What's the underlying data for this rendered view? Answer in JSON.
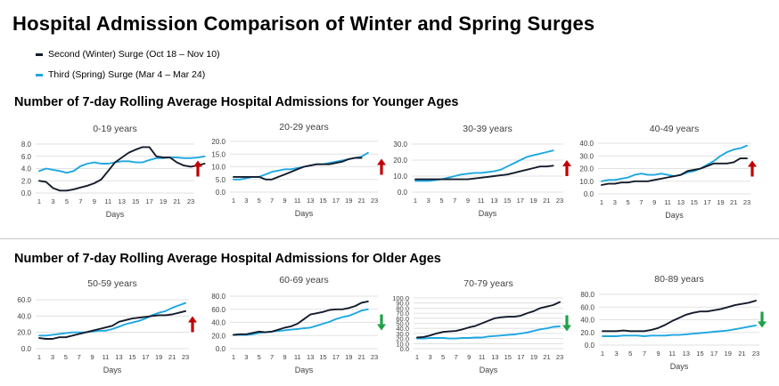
{
  "title": "Hospital Admission Comparison of Winter and Spring Surges",
  "legend": [
    {
      "label": "Second (Winter) Surge (Oct 18 – Nov 10)",
      "color": "#141c2b"
    },
    {
      "label": "Third (Spring) Surge (Mar 4 – Mar 24)",
      "color": "#1ea7e1"
    }
  ],
  "sections": [
    {
      "title": "Number of 7-day Rolling Average Hospital Admissions for Younger Ages"
    },
    {
      "title": "Number of 7-day Rolling Average Hospital Admissions for Older Ages"
    }
  ],
  "colors": {
    "winter": "#141c2b",
    "spring": "#1ea7e1",
    "arrow_up": "#c00000",
    "arrow_down": "#21a04a",
    "grid": "#d9d9d9"
  },
  "chart_data": [
    {
      "type": "line",
      "title": "0-19 years",
      "xlabel": "Days",
      "ylim": [
        0,
        8
      ],
      "yticks": [
        0,
        2,
        4,
        6,
        8
      ],
      "ytick_labels": [
        "0.0",
        "2.0",
        "4.0",
        "6.0",
        "8.0"
      ],
      "xtick_labels": [
        "1",
        "3",
        "5",
        "7",
        "9",
        "11",
        "13",
        "15",
        "17",
        "19",
        "21",
        "23"
      ],
      "trend": "up",
      "series": [
        {
          "name": "Second (Winter) Surge (Oct 18 – Nov 10)",
          "values": [
            2.0,
            1.8,
            0.8,
            0.4,
            0.4,
            0.6,
            0.9,
            1.2,
            1.6,
            2.2,
            3.6,
            5.0,
            5.8,
            6.6,
            7.1,
            7.5,
            7.5,
            6.0,
            5.8,
            5.8,
            5.0,
            4.5,
            4.3,
            4.5,
            4.8
          ]
        },
        {
          "name": "Third (Spring) Surge (Mar 4 – Mar 24)",
          "values": [
            3.6,
            4.0,
            3.8,
            3.6,
            3.3,
            3.6,
            4.4,
            4.8,
            5.0,
            4.8,
            4.8,
            5.0,
            5.2,
            5.2,
            5.0,
            5.0,
            5.4,
            5.7,
            5.7,
            5.8,
            5.8,
            5.7,
            5.7,
            5.8,
            6.0
          ]
        }
      ]
    },
    {
      "type": "line",
      "title": "20-29 years",
      "xlabel": "Days",
      "ylim": [
        0,
        20
      ],
      "yticks": [
        0,
        5,
        10,
        15,
        20
      ],
      "ytick_labels": [
        "0.0",
        "5.0",
        "10.0",
        "15.0",
        "20.0"
      ],
      "xtick_labels": [
        "1",
        "3",
        "5",
        "7",
        "9",
        "11",
        "13",
        "15",
        "17",
        "19",
        "21",
        "23"
      ],
      "trend": "up",
      "series": [
        {
          "name": "Second (Winter) Surge (Oct 18 – Nov 10)",
          "values": [
            6,
            6,
            6,
            6,
            6,
            5,
            5,
            6,
            7,
            8,
            9,
            10,
            10.5,
            11,
            11,
            11,
            11.5,
            12,
            13,
            13.5,
            13.5
          ]
        },
        {
          "name": "Third (Spring) Surge (Mar 4 – Mar 24)",
          "values": [
            5,
            5,
            5.5,
            6,
            6,
            7,
            8,
            8.5,
            9,
            9,
            9.5,
            10,
            10.5,
            11,
            11,
            11.5,
            12,
            12.5,
            13,
            13.5,
            14,
            15.5
          ]
        }
      ]
    },
    {
      "type": "line",
      "title": "30-39 years",
      "xlabel": "Days",
      "ylim": [
        0,
        30
      ],
      "yticks": [
        0,
        10,
        20,
        30
      ],
      "ytick_labels": [
        "0.0",
        "10.0",
        "20.0",
        "30.0"
      ],
      "xtick_labels": [
        "1",
        "3",
        "5",
        "7",
        "9",
        "11",
        "13",
        "15",
        "17",
        "19",
        "21",
        "23"
      ],
      "trend": "up",
      "series": [
        {
          "name": "Second (Winter) Surge (Oct 18 – Nov 10)",
          "values": [
            8,
            8,
            8,
            8,
            8,
            8,
            8,
            8,
            8,
            8.5,
            9,
            9.5,
            10,
            10.5,
            11,
            12,
            13,
            14,
            15,
            16,
            16,
            16.5
          ]
        },
        {
          "name": "Third (Spring) Surge (Mar 4 – Mar 24)",
          "values": [
            7,
            7,
            7,
            7.5,
            8,
            9,
            10,
            11,
            11.5,
            12,
            12,
            12.5,
            13,
            14,
            16,
            18,
            20,
            22,
            23,
            24,
            25,
            26
          ]
        }
      ]
    },
    {
      "type": "line",
      "title": "40-49 years",
      "xlabel": "Days",
      "ylim": [
        0,
        40
      ],
      "yticks": [
        0,
        10,
        20,
        30,
        40
      ],
      "ytick_labels": [
        "0.0",
        "10.0",
        "20.0",
        "30.0",
        "40.0"
      ],
      "xtick_labels": [
        "1",
        "3",
        "5",
        "7",
        "9",
        "11",
        "13",
        "15",
        "17",
        "19",
        "21",
        "23"
      ],
      "trend": "up",
      "series": [
        {
          "name": "Second (Winter) Surge (Oct 18 – Nov 10)",
          "values": [
            7,
            8,
            8,
            9,
            9,
            10,
            10,
            10,
            11,
            12,
            13,
            14,
            15,
            18,
            19,
            20,
            22,
            24,
            24,
            24,
            25,
            28,
            28
          ]
        },
        {
          "name": "Third (Spring) Surge (Mar 4 – Mar 24)",
          "values": [
            10,
            11,
            11,
            12,
            13,
            15,
            16,
            15,
            15,
            16,
            15,
            14,
            15,
            17,
            18,
            20,
            23,
            26,
            30,
            33,
            35,
            36,
            38
          ]
        }
      ]
    },
    {
      "type": "line",
      "title": "50-59 years",
      "xlabel": "Days",
      "ylim": [
        0,
        60
      ],
      "yticks": [
        0,
        20,
        40,
        60
      ],
      "ytick_labels": [
        "0.0",
        "20.0",
        "40.0",
        "60.0"
      ],
      "xtick_labels": [
        "1",
        "3",
        "5",
        "7",
        "9",
        "11",
        "13",
        "15",
        "17",
        "19",
        "21",
        "23"
      ],
      "trend": "up",
      "series": [
        {
          "name": "Second (Winter) Surge (Oct 18 – Nov 10)",
          "values": [
            13,
            12,
            12,
            14,
            14,
            16,
            18,
            20,
            22,
            24,
            26,
            28,
            33,
            35,
            37,
            38,
            39,
            40,
            41,
            41,
            42,
            44,
            46
          ]
        },
        {
          "name": "Third (Spring) Surge (Mar 4 – Mar 24)",
          "values": [
            16,
            16,
            17,
            18,
            19,
            20,
            20,
            20,
            21,
            22,
            22,
            24,
            27,
            30,
            32,
            34,
            37,
            41,
            44,
            46,
            50,
            53,
            56
          ]
        }
      ]
    },
    {
      "type": "line",
      "title": "60-69 years",
      "xlabel": "Days",
      "ylim": [
        0,
        80
      ],
      "yticks": [
        0,
        20,
        40,
        60,
        80
      ],
      "ytick_labels": [
        "0.0",
        "20.0",
        "40.0",
        "60.0",
        "80.0"
      ],
      "xtick_labels": [
        "1",
        "3",
        "5",
        "7",
        "9",
        "11",
        "13",
        "15",
        "17",
        "19",
        "21",
        "23"
      ],
      "trend": "down",
      "series": [
        {
          "name": "Second (Winter) Surge (Oct 18 – Nov 10)",
          "values": [
            21,
            22,
            22,
            24,
            26,
            25,
            26,
            29,
            32,
            34,
            38,
            45,
            52,
            54,
            56,
            59,
            60,
            60,
            62,
            65,
            70,
            72
          ]
        },
        {
          "name": "Third (Spring) Surge (Mar 4 – Mar 24)",
          "values": [
            21,
            21,
            21,
            22,
            24,
            25,
            26,
            27,
            28,
            29,
            30,
            31,
            32,
            35,
            38,
            41,
            45,
            48,
            50,
            54,
            58,
            60
          ]
        }
      ]
    },
    {
      "type": "line",
      "title": "70-79 years",
      "xlabel": "Days",
      "ylim": [
        0,
        100
      ],
      "yticks": [
        0,
        10,
        20,
        30,
        40,
        50,
        60,
        70,
        80,
        90,
        100
      ],
      "ytick_labels": [
        "0.0",
        "10.0",
        "20.0",
        "30.0",
        "40.0",
        "50.0",
        "60.0",
        "70.0",
        "80.0",
        "90.0",
        "100.0"
      ],
      "xtick_labels": [
        "1",
        "3",
        "5",
        "7",
        "9",
        "11",
        "13",
        "15",
        "17",
        "19",
        "21",
        "23"
      ],
      "trend": "down",
      "series": [
        {
          "name": "Second (Winter) Surge (Oct 18 – Nov 10)",
          "values": [
            22,
            23,
            26,
            30,
            33,
            34,
            35,
            38,
            42,
            45,
            50,
            55,
            60,
            62,
            63,
            63,
            65,
            70,
            74,
            80,
            83,
            86,
            92
          ]
        },
        {
          "name": "Third (Spring) Surge (Mar 4 – Mar 24)",
          "values": [
            20,
            20,
            21,
            21,
            21,
            20,
            20,
            21,
            21,
            22,
            22,
            24,
            25,
            26,
            27,
            28,
            30,
            32,
            35,
            38,
            40,
            43,
            44
          ]
        }
      ]
    },
    {
      "type": "line",
      "title": "80-89 years",
      "xlabel": "Days",
      "ylim": [
        0,
        80
      ],
      "yticks": [
        0,
        20,
        40,
        60,
        80
      ],
      "ytick_labels": [
        "0.0",
        "20.0",
        "40.0",
        "60.0",
        "80.0"
      ],
      "xtick_labels": [
        "1",
        "3",
        "5",
        "7",
        "9",
        "11",
        "13",
        "15",
        "17",
        "19",
        "21",
        "23"
      ],
      "trend": "down",
      "series": [
        {
          "name": "Second (Winter) Surge (Oct 18 – Nov 10)",
          "values": [
            22,
            22,
            22,
            23,
            22,
            22,
            22,
            24,
            27,
            32,
            38,
            43,
            48,
            51,
            53,
            53,
            55,
            57,
            60,
            63,
            65,
            67,
            70
          ]
        },
        {
          "name": "Third (Spring) Surge (Mar 4 – Mar 24)",
          "values": [
            14,
            14,
            14,
            15,
            15,
            15,
            14,
            15,
            15,
            15,
            16,
            16,
            17,
            18,
            19,
            20,
            21,
            22,
            23,
            25,
            27,
            29,
            31
          ]
        }
      ]
    }
  ]
}
